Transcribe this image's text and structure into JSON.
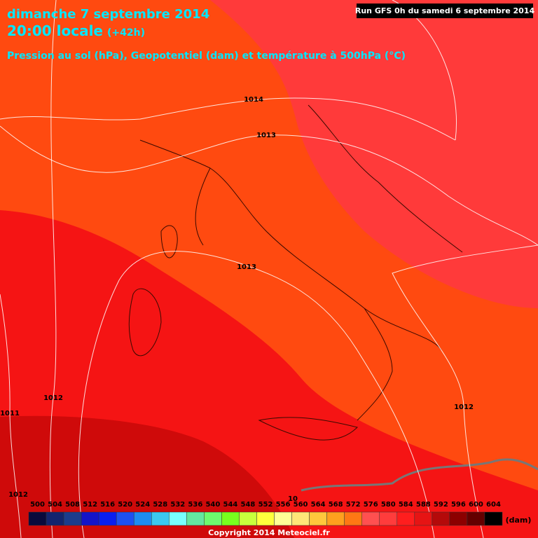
{
  "header": {
    "title": "dimanche 7 septembre 2014",
    "time": "20:00 locale",
    "lead": "(+42h)",
    "subtitle": "Pression au sol (hPa), Geopotentiel (dam) et température à 500hPa (°C)",
    "run": "Run GFS 0h du samedi 6 septembre 2014"
  },
  "isobars": [
    {
      "label": "1014"
    },
    {
      "label": "1013"
    },
    {
      "label": "1013"
    },
    {
      "label": "1012"
    },
    {
      "label": "1012"
    },
    {
      "label": "1011"
    },
    {
      "label": "1012"
    },
    {
      "label": "10"
    }
  ],
  "colorbar": {
    "unit": "(dam)",
    "ticks": [
      {
        "label": "500",
        "color": "#0a0a3c"
      },
      {
        "label": "504",
        "color": "#14246e"
      },
      {
        "label": "508",
        "color": "#1c3c8c"
      },
      {
        "label": "512",
        "color": "#1414c8"
      },
      {
        "label": "516",
        "color": "#0a1ef0"
      },
      {
        "label": "520",
        "color": "#1e50f0"
      },
      {
        "label": "524",
        "color": "#1e8cf0"
      },
      {
        "label": "528",
        "color": "#3cc8f0"
      },
      {
        "label": "532",
        "color": "#78ffff"
      },
      {
        "label": "536",
        "color": "#64e6a0"
      },
      {
        "label": "540",
        "color": "#6efa6e"
      },
      {
        "label": "544",
        "color": "#78ff1e"
      },
      {
        "label": "548",
        "color": "#c8ff3c"
      },
      {
        "label": "552",
        "color": "#ffff3c"
      },
      {
        "label": "556",
        "color": "#ffff96"
      },
      {
        "label": "560",
        "color": "#ffe678"
      },
      {
        "label": "564",
        "color": "#ffc83c"
      },
      {
        "label": "568",
        "color": "#ffa01e"
      },
      {
        "label": "572",
        "color": "#ff7814"
      },
      {
        "label": "576",
        "color": "#ff5050"
      },
      {
        "label": "580",
        "color": "#ff3c3c"
      },
      {
        "label": "584",
        "color": "#ff1e1e"
      },
      {
        "label": "588",
        "color": "#e61414"
      },
      {
        "label": "592",
        "color": "#b40a0a"
      },
      {
        "label": "596",
        "color": "#8c0000"
      },
      {
        "label": "600",
        "color": "#640000"
      },
      {
        "label": "604",
        "color": "#000000"
      }
    ]
  },
  "footer": {
    "copyright": "Copyright 2014 Meteociel.fr"
  }
}
